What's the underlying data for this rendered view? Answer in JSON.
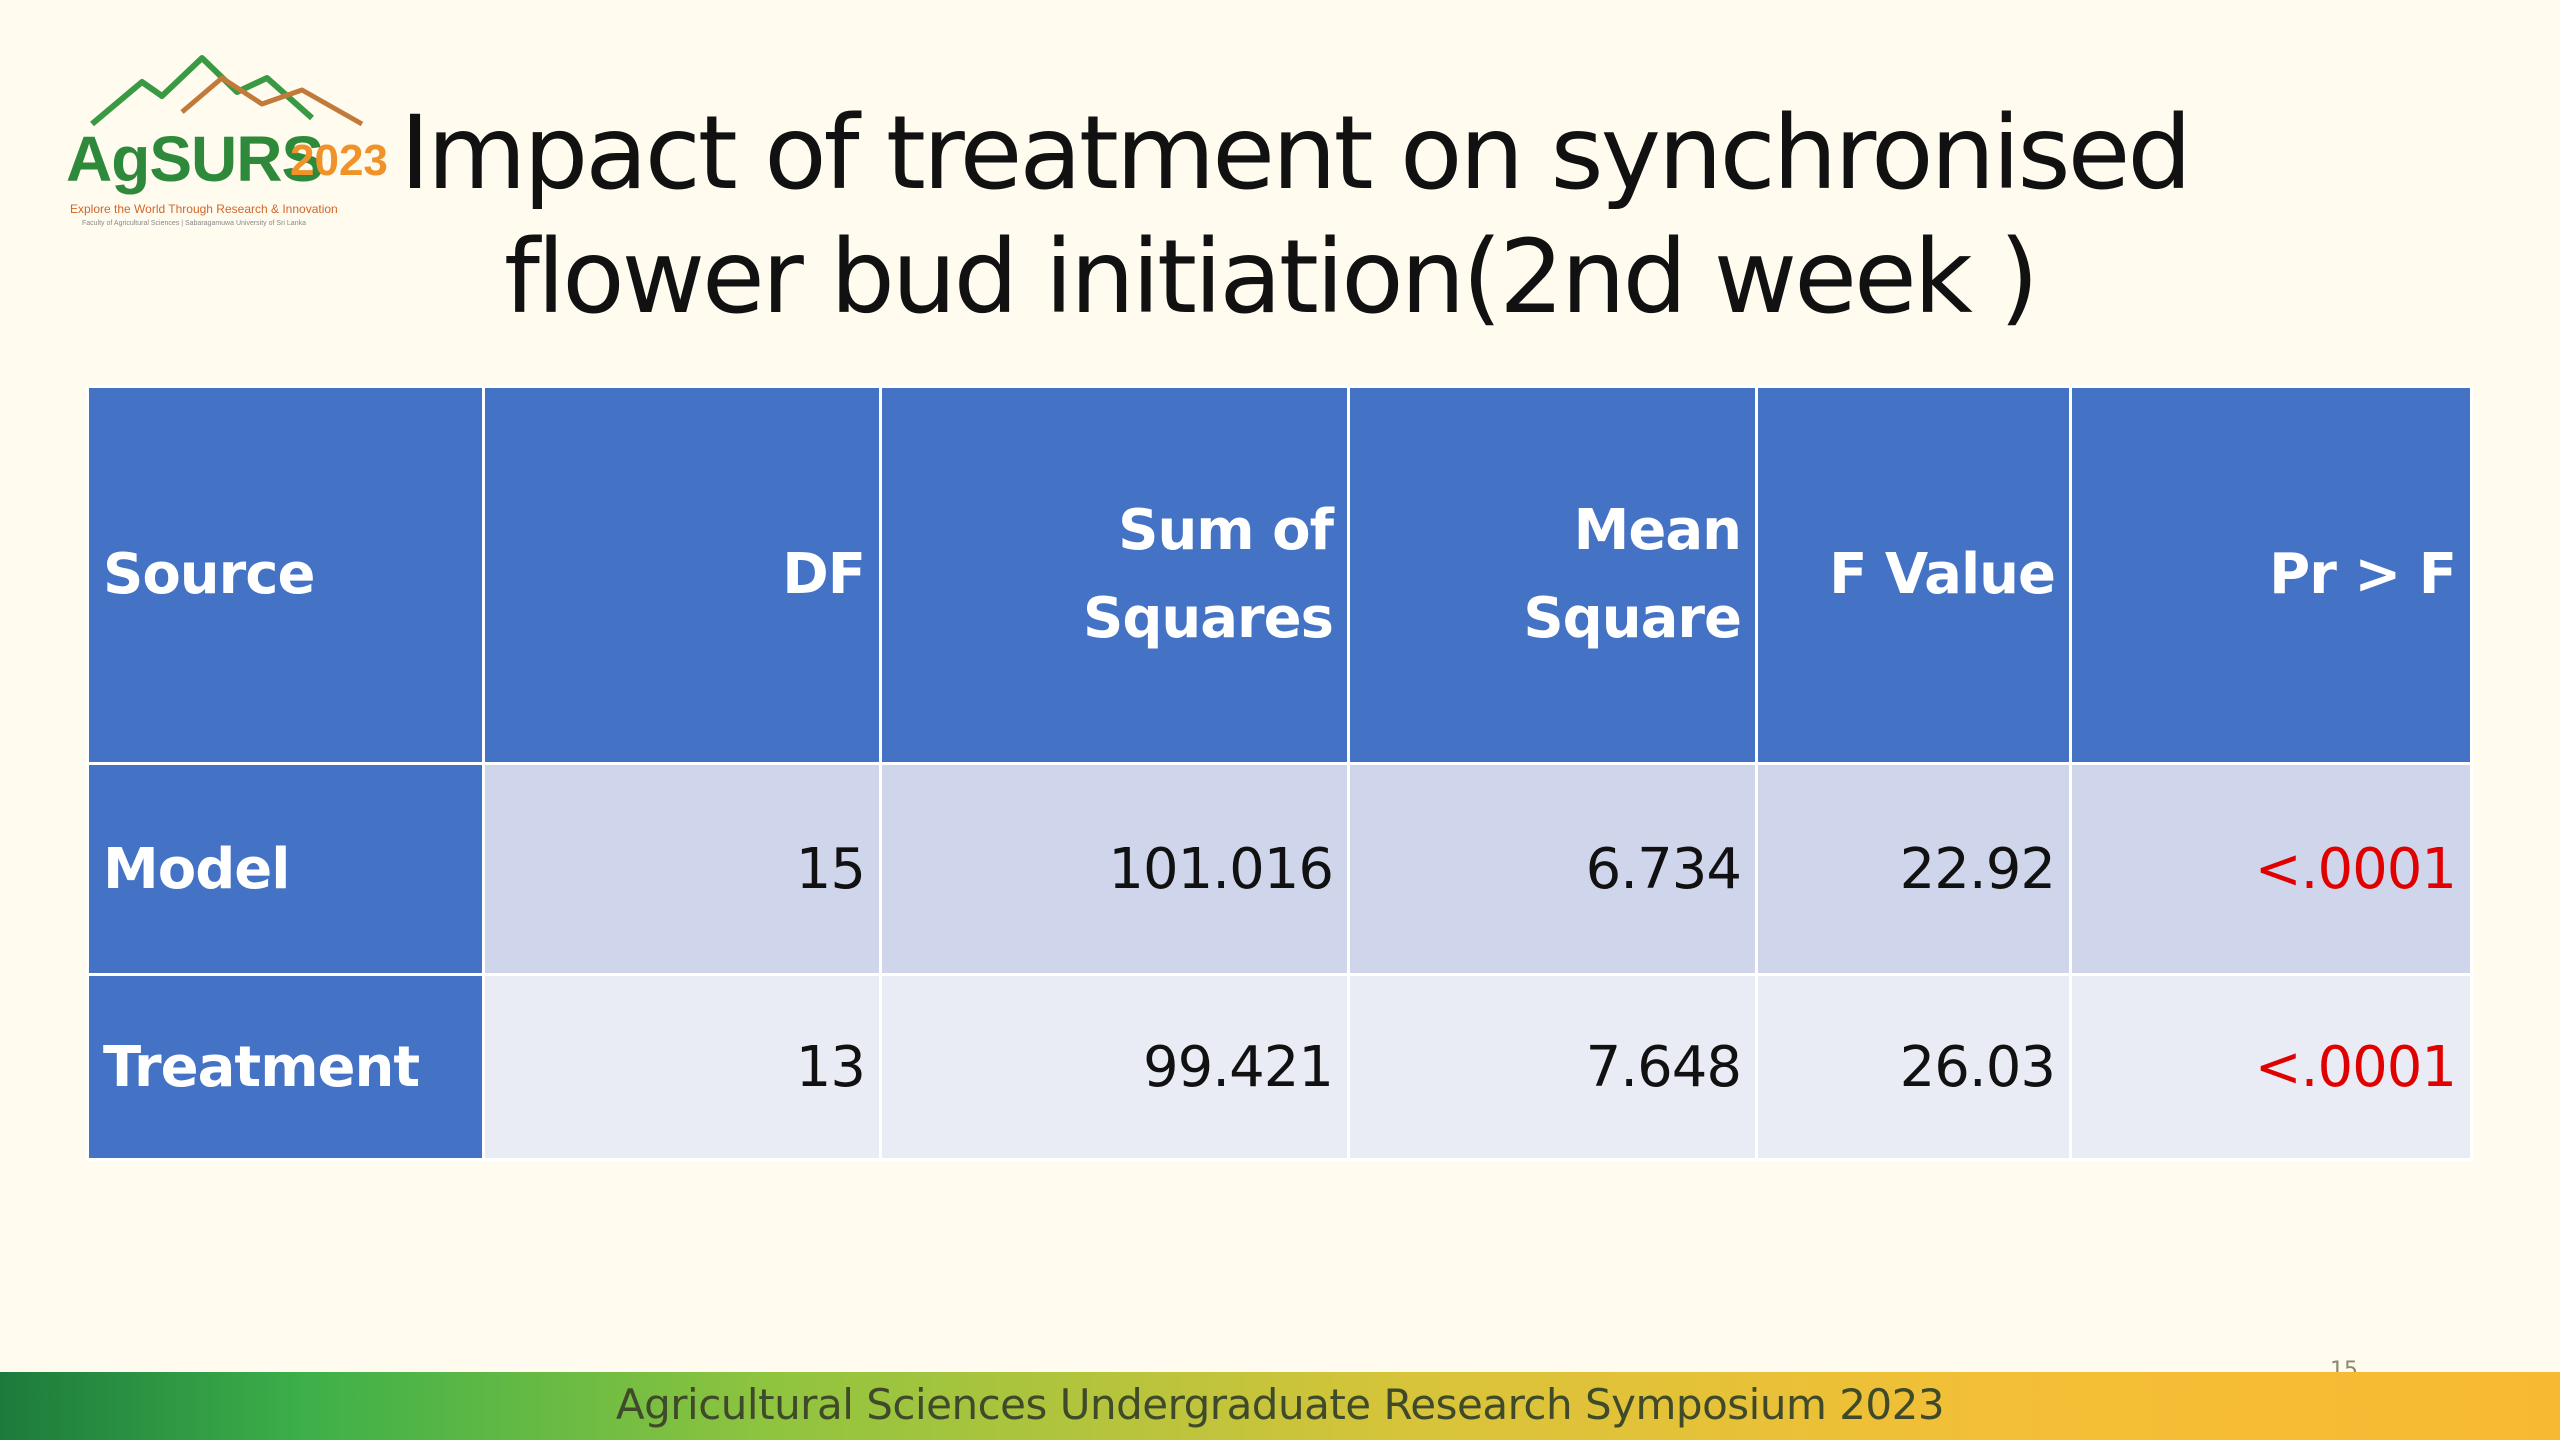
{
  "logo": {
    "name": "AgSURS",
    "year": "2023",
    "tagline": "Explore the World Through Research & Innovation",
    "subline": "Faculty of Agricultural Sciences | Sabaragamuwa University of Sri Lanka"
  },
  "title": {
    "line1": "Impact of treatment on synchronised",
    "line2": "flower bud initiation(2nd week )"
  },
  "table": {
    "headers": {
      "source": "Source",
      "df": "DF",
      "ss_line1": "Sum of",
      "ss_line2": "Squares",
      "ms_line1": "Mean",
      "ms_line2": "Square",
      "f": "F Value",
      "p": "Pr > F"
    },
    "rows": [
      {
        "source": "Model",
        "df": "15",
        "ss": "101.016",
        "ms": "6.734",
        "f": "22.92",
        "p": "<.0001"
      },
      {
        "source": "Treatment",
        "df": "13",
        "ss": "99.421",
        "ms": "7.648",
        "f": "26.03",
        "p": "<.0001"
      }
    ]
  },
  "footer": {
    "text": "Agricultural Sciences Undergraduate Research Symposium 2023",
    "page_number": "15"
  },
  "colors": {
    "header_blue": "#4472c4",
    "row_a": "#cfd5ea",
    "row_b": "#e9ebf5",
    "p_value_red": "#e00000"
  }
}
